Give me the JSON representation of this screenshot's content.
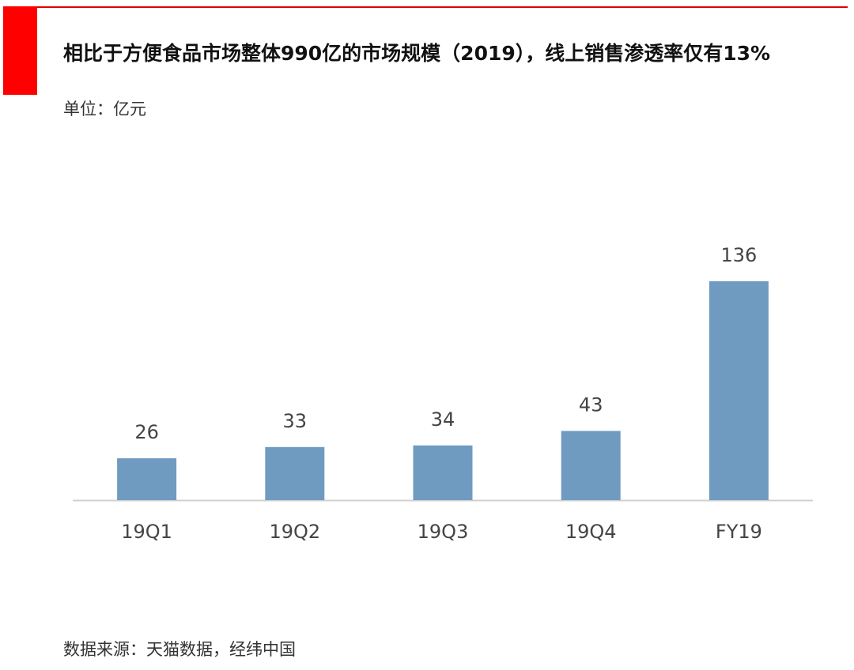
{
  "header": {
    "title": "相比于方便食品市场整体990亿的市场规模（2019），线上销售渗透率仅有13%",
    "unit": "单位：亿元"
  },
  "footer": {
    "source": "数据来源：天猫数据，经纬中国"
  },
  "colors": {
    "accent": "#ff0000",
    "bar": "#6f9bc1",
    "axis": "#d0d0d0",
    "label": "#444444"
  },
  "chart_data": {
    "type": "bar",
    "categories": [
      "19Q1",
      "19Q2",
      "19Q3",
      "19Q4",
      "FY19"
    ],
    "values": [
      26,
      33,
      34,
      43,
      136
    ],
    "data_labels": [
      "26",
      "33",
      "34",
      "43",
      "136"
    ],
    "title": "",
    "xlabel": "",
    "ylabel": "",
    "ylim": [
      0,
      136
    ],
    "grid": false,
    "legend": "none"
  }
}
